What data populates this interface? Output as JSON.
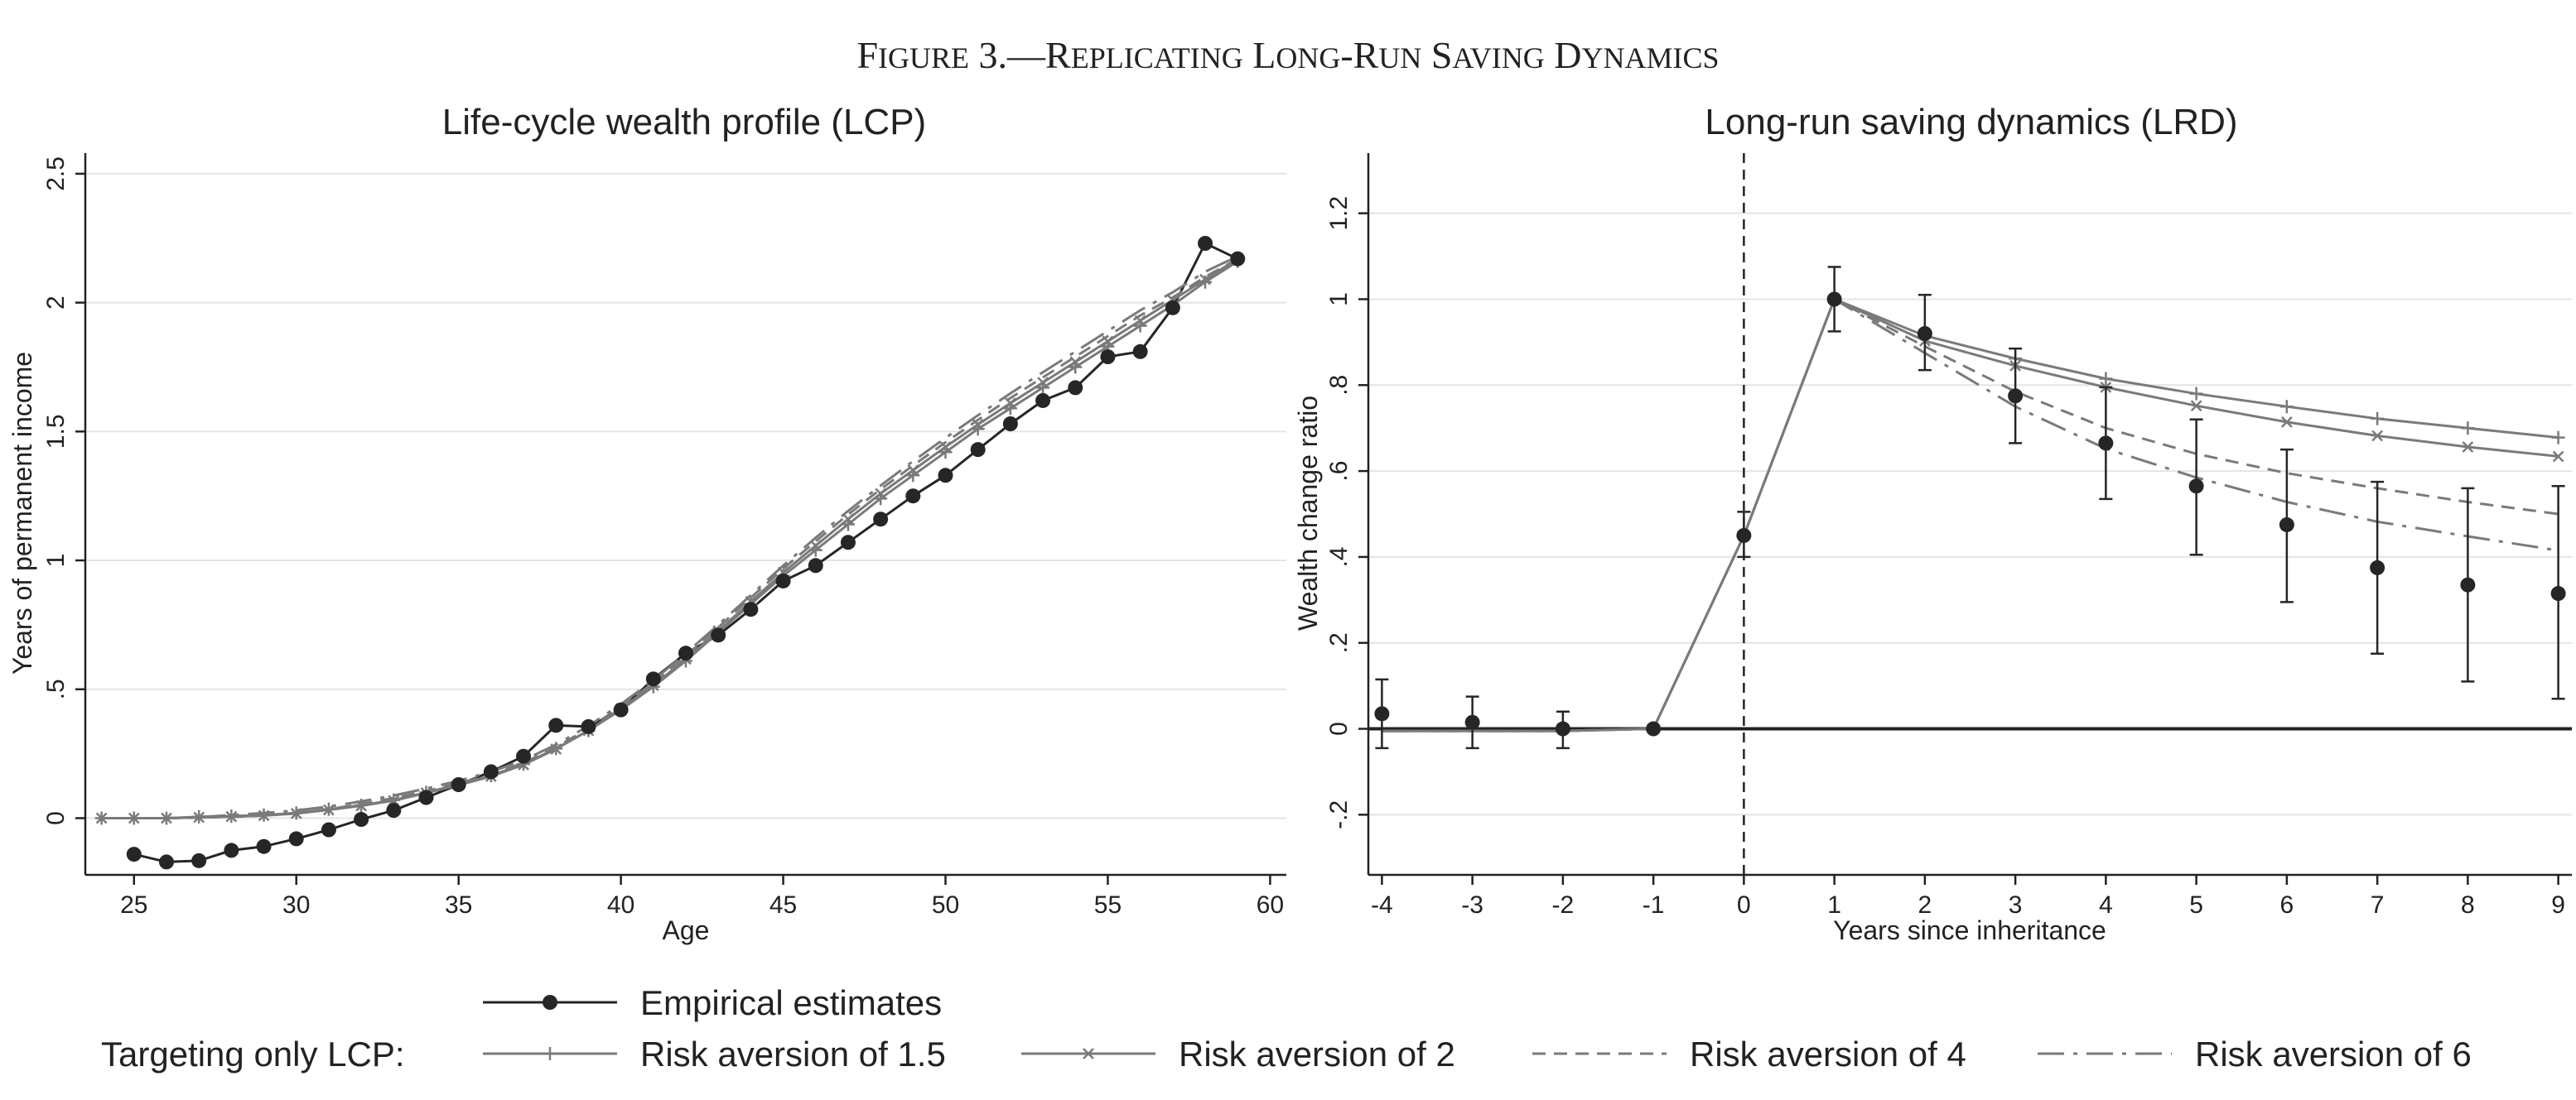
{
  "figure_title": {
    "lead": "F",
    "lead_sc": "IGURE",
    "num": " 3.—",
    "r": "R",
    "r_sc": "EPLICATING",
    "l": " L",
    "l_sc": "ONG",
    "dash": "-R",
    "dash_sc": "UN",
    "s": " S",
    "s_sc": "AVING",
    "d": " D",
    "d_sc": "YNAMICS"
  },
  "legend": {
    "prefix": "Targeting only LCP:",
    "entries": [
      {
        "name": "Empirical estimates",
        "style": "empirical"
      },
      {
        "name": "Risk aversion of 1.5",
        "style": "plus"
      },
      {
        "name": "Risk aversion of 2",
        "style": "cross"
      },
      {
        "name": "Risk aversion of 4",
        "style": "dashed"
      },
      {
        "name": "Risk aversion of 6",
        "style": "dashdot"
      }
    ]
  },
  "colors": {
    "empirical": "#262626",
    "model": "#7a7a7a",
    "axis": "#222222"
  },
  "chart_data": [
    {
      "type": "line",
      "title": "Life-cycle wealth profile (LCP)",
      "xlabel": "Age",
      "ylabel": "Years of permanent income",
      "xlim": [
        23.5,
        60.5
      ],
      "ylim": [
        -0.22,
        2.58
      ],
      "xticks": [
        25,
        30,
        35,
        40,
        45,
        50,
        55,
        60
      ],
      "yticks": [
        0,
        0.5,
        1,
        1.5,
        2,
        2.5
      ],
      "ytick_labels": [
        "0",
        ".5",
        "1",
        "1.5",
        "2",
        "2.5"
      ],
      "grid": true,
      "series": [
        {
          "name": "Empirical estimates",
          "style": "empirical",
          "x": [
            25,
            26,
            27,
            28,
            29,
            30,
            31,
            32,
            33,
            34,
            35,
            36,
            37,
            38,
            39,
            40,
            41,
            42,
            43,
            44,
            45,
            46,
            47,
            48,
            49,
            50,
            51,
            52,
            53,
            54,
            55,
            56,
            57,
            58,
            59
          ],
          "y": [
            -0.14,
            -0.17,
            -0.165,
            -0.125,
            -0.11,
            -0.08,
            -0.045,
            -0.005,
            0.03,
            0.08,
            0.13,
            0.18,
            0.24,
            0.36,
            0.355,
            0.42,
            0.54,
            0.64,
            0.71,
            0.81,
            0.92,
            0.98,
            1.07,
            1.16,
            1.25,
            1.33,
            1.43,
            1.53,
            1.62,
            1.67,
            1.79,
            1.81,
            1.98,
            2.23,
            2.17
          ]
        },
        {
          "name": "Risk aversion of 1.5",
          "style": "plus",
          "x": [
            24,
            25,
            26,
            27,
            28,
            29,
            30,
            31,
            32,
            33,
            34,
            35,
            36,
            37,
            38,
            39,
            40,
            41,
            42,
            43,
            44,
            45,
            46,
            47,
            48,
            49,
            50,
            51,
            52,
            53,
            54,
            55,
            56,
            57,
            58,
            59
          ],
          "y": [
            0,
            0,
            0,
            0.005,
            0.008,
            0.012,
            0.02,
            0.035,
            0.05,
            0.07,
            0.1,
            0.13,
            0.165,
            0.21,
            0.27,
            0.34,
            0.42,
            0.51,
            0.61,
            0.72,
            0.83,
            0.94,
            1.04,
            1.14,
            1.24,
            1.33,
            1.42,
            1.51,
            1.59,
            1.67,
            1.75,
            1.83,
            1.91,
            1.99,
            2.08,
            2.16
          ]
        },
        {
          "name": "Risk aversion of 2",
          "style": "cross",
          "x": [
            24,
            25,
            26,
            27,
            28,
            29,
            30,
            31,
            32,
            33,
            34,
            35,
            36,
            37,
            38,
            39,
            40,
            41,
            42,
            43,
            44,
            45,
            46,
            47,
            48,
            49,
            50,
            51,
            52,
            53,
            54,
            55,
            56,
            57,
            58,
            59
          ],
          "y": [
            0,
            0,
            0,
            0.003,
            0.006,
            0.01,
            0.018,
            0.032,
            0.048,
            0.068,
            0.098,
            0.128,
            0.162,
            0.207,
            0.268,
            0.34,
            0.425,
            0.515,
            0.617,
            0.727,
            0.84,
            0.953,
            1.057,
            1.16,
            1.259,
            1.35,
            1.44,
            1.527,
            1.61,
            1.69,
            1.77,
            1.85,
            1.93,
            2.01,
            2.09,
            2.17
          ]
        },
        {
          "name": "Risk aversion of 4",
          "style": "dashed",
          "x": [
            24,
            25,
            26,
            27,
            28,
            29,
            30,
            31,
            32,
            33,
            34,
            35,
            36,
            37,
            38,
            39,
            40,
            41,
            42,
            43,
            44,
            45,
            46,
            47,
            48,
            49,
            50,
            51,
            52,
            53,
            54,
            55,
            56,
            57,
            58,
            59
          ],
          "y": [
            0,
            0,
            0,
            0.002,
            0.005,
            0.01,
            0.02,
            0.035,
            0.055,
            0.078,
            0.105,
            0.135,
            0.17,
            0.215,
            0.275,
            0.348,
            0.432,
            0.525,
            0.63,
            0.74,
            0.855,
            0.968,
            1.074,
            1.178,
            1.276,
            1.368,
            1.458,
            1.545,
            1.63,
            1.71,
            1.79,
            1.87,
            1.95,
            2.02,
            2.1,
            2.17
          ]
        },
        {
          "name": "Risk aversion of 6",
          "style": "dashdot",
          "x": [
            24,
            25,
            26,
            27,
            28,
            29,
            30,
            31,
            32,
            33,
            34,
            35,
            36,
            37,
            38,
            39,
            40,
            41,
            42,
            43,
            44,
            45,
            46,
            47,
            48,
            49,
            50,
            51,
            52,
            53,
            54,
            55,
            56,
            57,
            58,
            59
          ],
          "y": [
            0,
            0,
            0,
            0.004,
            0.012,
            0.02,
            0.03,
            0.045,
            0.065,
            0.088,
            0.115,
            0.145,
            0.18,
            0.225,
            0.285,
            0.358,
            0.442,
            0.535,
            0.64,
            0.75,
            0.865,
            0.98,
            1.088,
            1.192,
            1.29,
            1.385,
            1.475,
            1.563,
            1.648,
            1.73,
            1.81,
            1.89,
            1.97,
            2.04,
            2.12,
            2.18
          ]
        }
      ]
    },
    {
      "type": "line",
      "title": "Long-run saving dynamics (LRD)",
      "xlabel": "Years since inheritance",
      "ylabel": "Wealth change ratio",
      "xlim": [
        -4.15,
        9.15
      ],
      "ylim": [
        -0.34,
        1.34
      ],
      "xticks": [
        -4,
        -3,
        -2,
        -1,
        0,
        1,
        2,
        3,
        4,
        5,
        6,
        7,
        8,
        9
      ],
      "yticks": [
        -0.2,
        0,
        0.2,
        0.4,
        0.6,
        0.8,
        1,
        1.2
      ],
      "ytick_labels": [
        "-.2",
        "0",
        ".2",
        ".4",
        ".6",
        ".8",
        "1",
        "1.2"
      ],
      "grid": true,
      "reference_lines": {
        "vertical_x": 0,
        "horizontal_y": 0
      },
      "empirical": {
        "name": "Empirical estimates",
        "x": [
          -4,
          -3,
          -2,
          -1,
          0,
          1,
          2,
          3,
          4,
          5,
          6,
          7,
          8,
          9
        ],
        "y": [
          0.035,
          0.015,
          0,
          0,
          0.45,
          1,
          0.92,
          0.775,
          0.665,
          0.565,
          0.475,
          0.375,
          0.335,
          0.315
        ],
        "ci_low": [
          -0.045,
          -0.045,
          -0.045,
          null,
          0.4,
          0.925,
          0.835,
          0.665,
          0.535,
          0.405,
          0.295,
          0.175,
          0.11,
          0.07
        ],
        "ci_high": [
          0.115,
          0.075,
          0.04,
          null,
          0.505,
          1.075,
          1.01,
          0.885,
          0.795,
          0.72,
          0.65,
          0.575,
          0.56,
          0.565
        ]
      },
      "series": [
        {
          "name": "Risk aversion of 1.5",
          "style": "plus",
          "x": [
            -4,
            -3,
            -2,
            -1,
            0,
            1,
            2,
            3,
            4,
            5,
            6,
            7,
            8,
            9
          ],
          "y": [
            -0.005,
            -0.005,
            -0.005,
            0,
            0.45,
            1,
            0.915,
            0.862,
            0.815,
            0.78,
            0.75,
            0.722,
            0.7,
            0.678
          ]
        },
        {
          "name": "Risk aversion of 2",
          "style": "cross",
          "x": [
            -4,
            -3,
            -2,
            -1,
            0,
            1,
            2,
            3,
            4,
            5,
            6,
            7,
            8,
            9
          ],
          "y": [
            -0.005,
            -0.005,
            -0.005,
            0,
            0.45,
            1,
            0.903,
            0.845,
            0.795,
            0.752,
            0.714,
            0.682,
            0.656,
            0.634
          ]
        },
        {
          "name": "Risk aversion of 4",
          "style": "dashed",
          "x": [
            -4,
            -3,
            -2,
            -1,
            0,
            1,
            2,
            3,
            4,
            5,
            6,
            7,
            8,
            9
          ],
          "y": [
            -0.005,
            -0.005,
            -0.005,
            0,
            0.45,
            1,
            0.89,
            0.785,
            0.7,
            0.64,
            0.595,
            0.56,
            0.528,
            0.5
          ]
        },
        {
          "name": "Risk aversion of 6",
          "style": "dashdot",
          "x": [
            -4,
            -3,
            -2,
            -1,
            0,
            1,
            2,
            3,
            4,
            5,
            6,
            7,
            8,
            9
          ],
          "y": [
            -0.005,
            -0.005,
            -0.005,
            0,
            0.45,
            1,
            0.875,
            0.75,
            0.652,
            0.585,
            0.528,
            0.482,
            0.448,
            0.415
          ]
        }
      ]
    }
  ]
}
